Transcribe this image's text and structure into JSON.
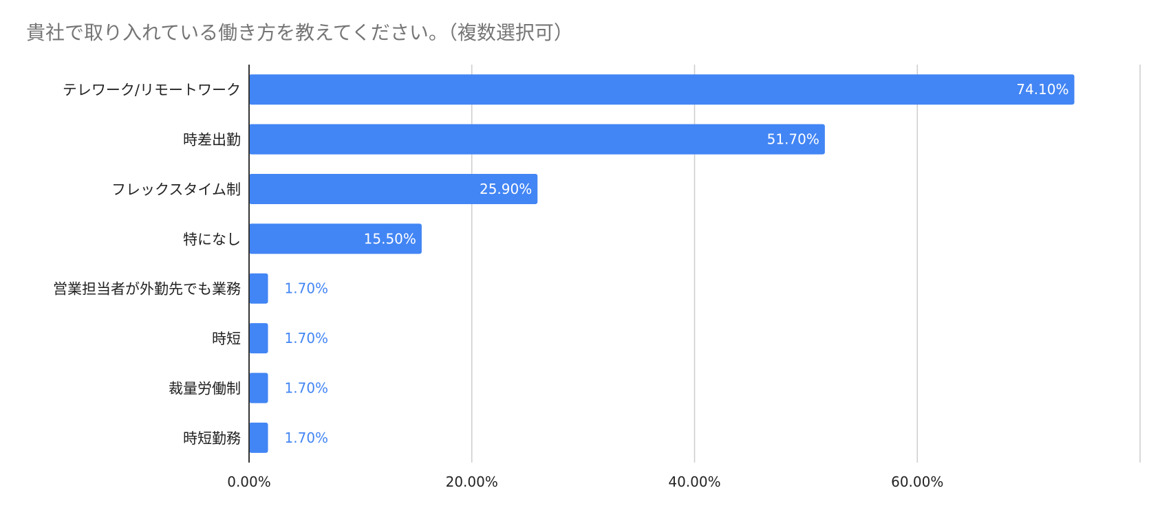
{
  "chart_data": {
    "type": "bar",
    "orientation": "horizontal",
    "title": "貴社で取り入れている働き方を教えてください。（複数選択可）",
    "xlabel": "",
    "ylabel": "",
    "categories": [
      "テレワーク/リモートワーク",
      "時差出勤",
      "フレックスタイム制",
      "特になし",
      "営業担当者が外勤先でも業務",
      "時短",
      "裁量労働制",
      "時短勤務"
    ],
    "values": [
      74.1,
      51.7,
      25.9,
      15.5,
      1.7,
      1.7,
      1.7,
      1.7
    ],
    "value_labels": [
      "74.10%",
      "51.70%",
      "25.90%",
      "15.50%",
      "1.70%",
      "1.70%",
      "1.70%",
      "1.70%"
    ],
    "xlim": [
      0,
      80
    ],
    "xticks": [
      0,
      20,
      40,
      60,
      80
    ],
    "xtick_labels": [
      "0.00%",
      "20.00%",
      "40.00%",
      "60.00%",
      ""
    ],
    "grid": true,
    "legend": "none",
    "colors": {
      "bar": "#4285f4",
      "label_inside": "#ffffff",
      "label_outside": "#4285f4",
      "grid": "#cccccc",
      "axis": "#333333",
      "title": "#757575"
    }
  }
}
